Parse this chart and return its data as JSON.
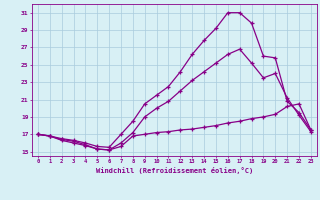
{
  "xlabel": "Windchill (Refroidissement éolien,°C)",
  "background_color": "#d8f0f5",
  "line_color": "#880088",
  "grid_color": "#aaccdd",
  "xlim": [
    -0.5,
    23.5
  ],
  "ylim": [
    14.5,
    32
  ],
  "xticks": [
    0,
    1,
    2,
    3,
    4,
    5,
    6,
    7,
    8,
    9,
    10,
    11,
    12,
    13,
    14,
    15,
    16,
    17,
    18,
    19,
    20,
    21,
    22,
    23
  ],
  "yticks": [
    15,
    17,
    19,
    21,
    23,
    25,
    27,
    29,
    31
  ],
  "line1_x": [
    0,
    1,
    2,
    3,
    4,
    5,
    6,
    7,
    8,
    9,
    10,
    11,
    12,
    13,
    14,
    15,
    16,
    17,
    18,
    19,
    20,
    21,
    22,
    23
  ],
  "line1_y": [
    17.0,
    16.8,
    16.5,
    16.3,
    16.0,
    15.6,
    15.5,
    17.0,
    18.5,
    20.5,
    21.5,
    22.5,
    24.2,
    26.2,
    27.8,
    29.2,
    31.0,
    31.0,
    29.8,
    26.0,
    25.8,
    20.8,
    19.5,
    17.5
  ],
  "line2_x": [
    0,
    1,
    2,
    3,
    4,
    5,
    6,
    7,
    8,
    9,
    10,
    11,
    12,
    13,
    14,
    15,
    16,
    17,
    18,
    19,
    20,
    21,
    22,
    23
  ],
  "line2_y": [
    17.0,
    16.8,
    16.3,
    16.0,
    15.7,
    15.3,
    15.2,
    16.0,
    17.2,
    19.0,
    20.0,
    20.8,
    22.0,
    23.2,
    24.2,
    25.2,
    26.2,
    26.8,
    25.2,
    23.5,
    24.0,
    21.2,
    19.2,
    17.3
  ],
  "line3_x": [
    0,
    1,
    2,
    3,
    4,
    5,
    6,
    7,
    8,
    9,
    10,
    11,
    12,
    13,
    14,
    15,
    16,
    17,
    18,
    19,
    20,
    21,
    22,
    23
  ],
  "line3_y": [
    17.0,
    16.8,
    16.4,
    16.2,
    15.8,
    15.3,
    15.2,
    15.6,
    16.8,
    17.0,
    17.2,
    17.3,
    17.5,
    17.6,
    17.8,
    18.0,
    18.3,
    18.5,
    18.8,
    19.0,
    19.3,
    20.2,
    20.5,
    17.5
  ]
}
